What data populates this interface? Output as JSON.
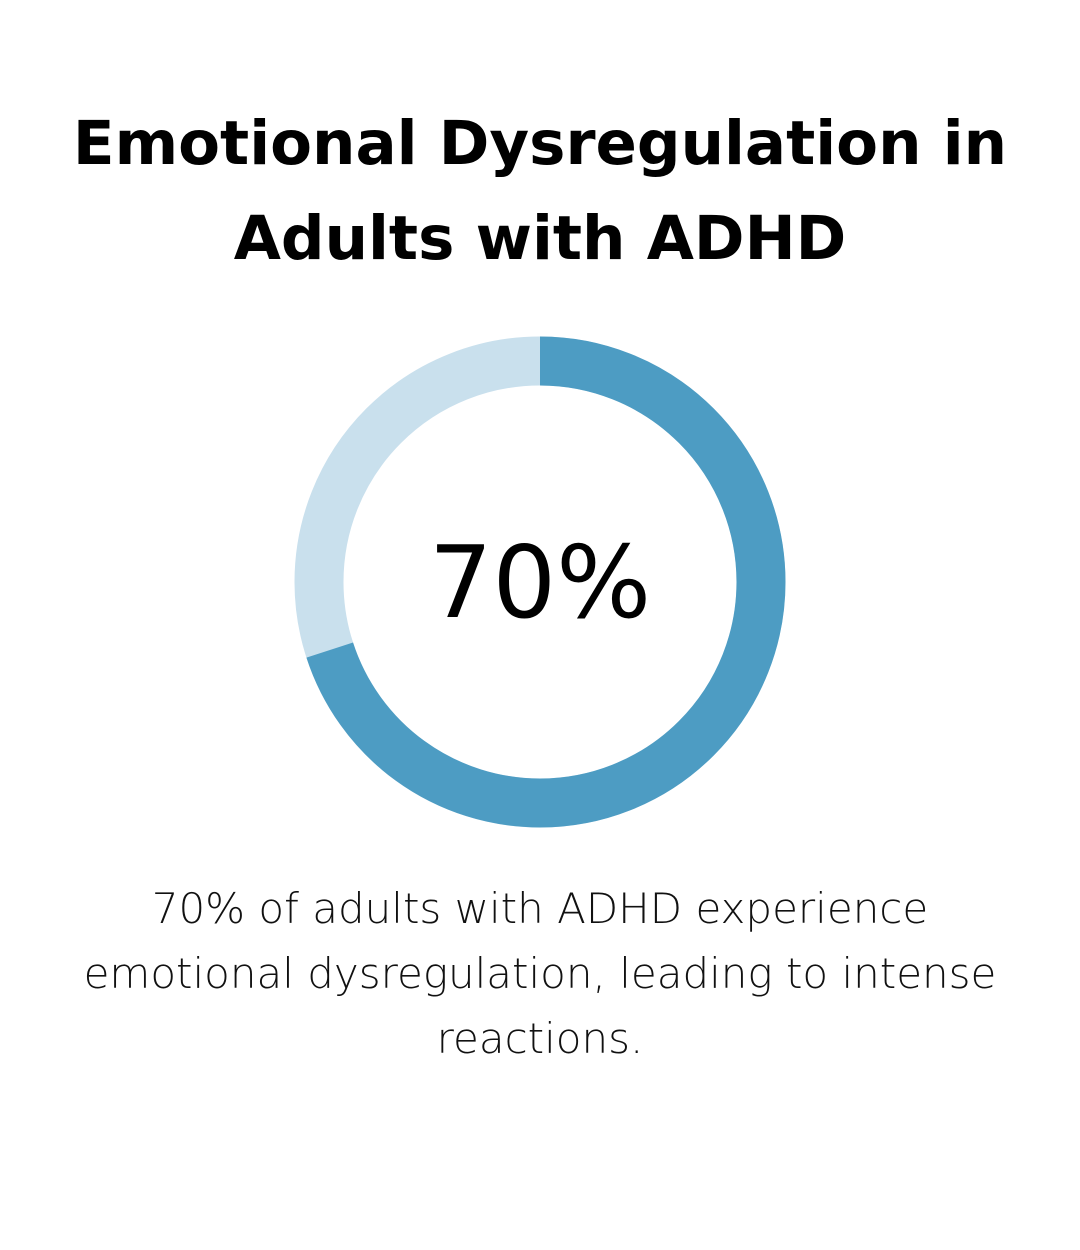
{
  "title": "Emotional Dysregulation in Adults with ADHD",
  "chart_data": {
    "type": "pie",
    "variant": "donut",
    "value_percent": 70,
    "center_label": "70%",
    "slices": [
      {
        "value": 70,
        "color": "#4d9cc3"
      },
      {
        "value": 30,
        "color": "#c9e0ed"
      }
    ]
  },
  "description": "70% of adults with ADHD experience emotional dysregulation, leading to intense reactions.",
  "colors": {
    "accent": "#4d9cc3",
    "track": "#c9e0ed",
    "text": "#000000"
  }
}
